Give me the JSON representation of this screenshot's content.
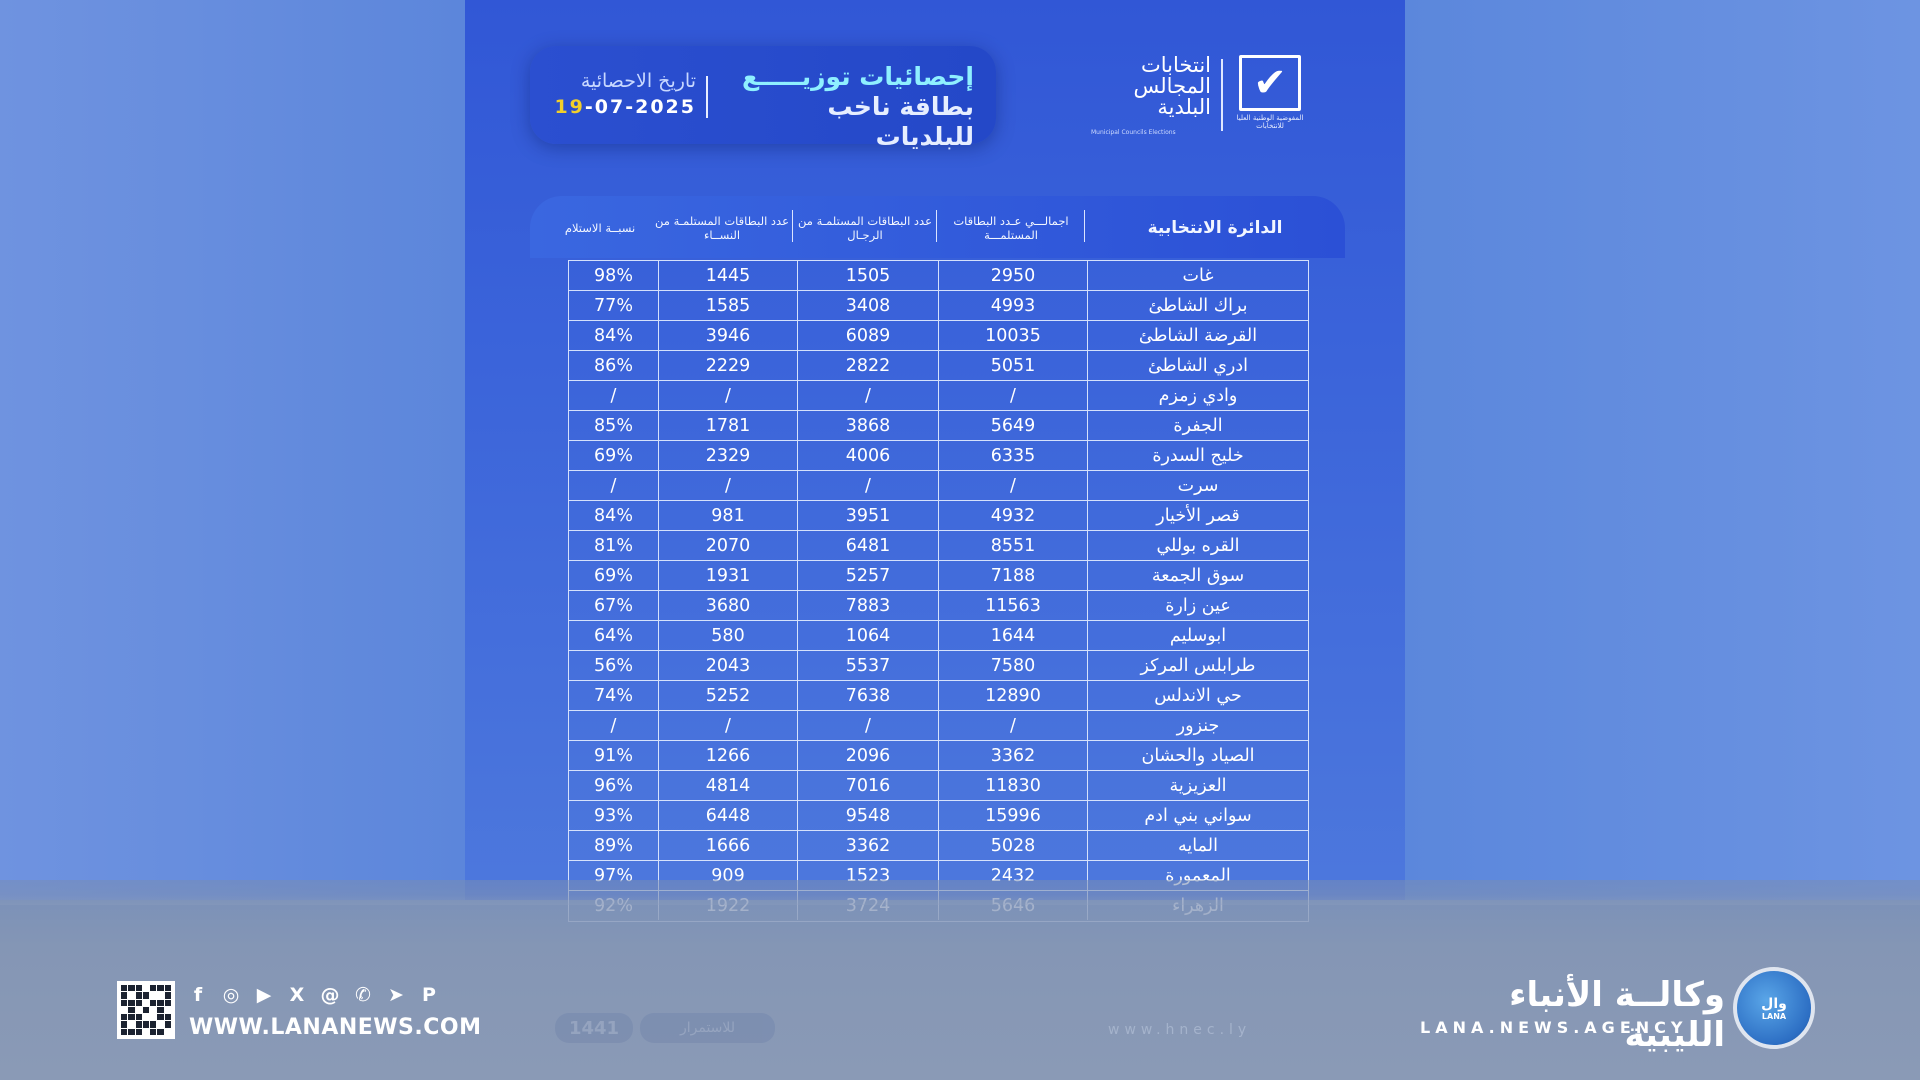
{
  "poster": {
    "title_line1": "إحصائيات توزيـــــع",
    "title_line2": "بطاقة ناخب للبلديات",
    "date_label": "تاريخ الاحصائية",
    "date_prefix": "19",
    "date_rest": "-07-2025",
    "logo_elections_text": "انتخابات المجالس البلدية",
    "logo_elections_sub": "Municipal Councils Elections",
    "logo_commission_caption": "المفوضية الوطنية العليا للانتخابات"
  },
  "table": {
    "headers": {
      "district": "الدائرة الانتخابية",
      "total": "اجمالـــي عـدد البطاقات المستلمـــة",
      "men": "عدد البطاقات المستلمـة من الرجـال",
      "women": "عدد البطاقات المستلمـة من النســاء",
      "pct": "نسبــة الاستلام"
    },
    "rows": [
      {
        "name": "غات",
        "total": "2950",
        "men": "1505",
        "women": "1445",
        "pct": "98%"
      },
      {
        "name": "براك الشاطئ",
        "total": "4993",
        "men": "3408",
        "women": "1585",
        "pct": "77%"
      },
      {
        "name": "القرضة الشاطئ",
        "total": "10035",
        "men": "6089",
        "women": "3946",
        "pct": "84%"
      },
      {
        "name": "ادري الشاطئ",
        "total": "5051",
        "men": "2822",
        "women": "2229",
        "pct": "86%"
      },
      {
        "name": "وادي زمزم",
        "total": "/",
        "men": "/",
        "women": "/",
        "pct": "/"
      },
      {
        "name": "الجفرة",
        "total": "5649",
        "men": "3868",
        "women": "1781",
        "pct": "85%"
      },
      {
        "name": "خليج السدرة",
        "total": "6335",
        "men": "4006",
        "women": "2329",
        "pct": "69%"
      },
      {
        "name": "سرت",
        "total": "/",
        "men": "/",
        "women": "/",
        "pct": "/"
      },
      {
        "name": "قصر الأخيار",
        "total": "4932",
        "men": "3951",
        "women": "981",
        "pct": "84%"
      },
      {
        "name": "القره بوللي",
        "total": "8551",
        "men": "6481",
        "women": "2070",
        "pct": "81%"
      },
      {
        "name": "سوق الجمعة",
        "total": "7188",
        "men": "5257",
        "women": "1931",
        "pct": "69%"
      },
      {
        "name": "عين زارة",
        "total": "11563",
        "men": "7883",
        "women": "3680",
        "pct": "67%"
      },
      {
        "name": "ابوسليم",
        "total": "1644",
        "men": "1064",
        "women": "580",
        "pct": "64%"
      },
      {
        "name": "طرابلس المركز",
        "total": "7580",
        "men": "5537",
        "women": "2043",
        "pct": "56%"
      },
      {
        "name": "حي الاندلس",
        "total": "12890",
        "men": "7638",
        "women": "5252",
        "pct": "74%"
      },
      {
        "name": "جنزور",
        "total": "/",
        "men": "/",
        "women": "/",
        "pct": "/"
      },
      {
        "name": "الصياد والحشان",
        "total": "3362",
        "men": "2096",
        "women": "1266",
        "pct": "91%"
      },
      {
        "name": "العزيزية",
        "total": "11830",
        "men": "7016",
        "women": "4814",
        "pct": "96%"
      },
      {
        "name": "سواني بني ادم",
        "total": "15996",
        "men": "9548",
        "women": "6448",
        "pct": "93%"
      },
      {
        "name": "المايه",
        "total": "5028",
        "men": "3362",
        "women": "1666",
        "pct": "89%"
      },
      {
        "name": "المعمورة",
        "total": "2432",
        "men": "1523",
        "women": "909",
        "pct": "97%"
      },
      {
        "name": "الزهراء",
        "total": "5646",
        "men": "3724",
        "women": "1922",
        "pct": "92%"
      }
    ]
  },
  "poster_footer": {
    "page_number": "1441",
    "next_label": "للاستمرار",
    "site": "www.hnec.ly"
  },
  "footer": {
    "website": "WWW.LANANEWS.COM",
    "agency_ar": "وكالــة الأنباء الليبية",
    "agency_en": "LANA.NEWS.AGENCY",
    "globe_ar": "وال",
    "globe_en": "LANA",
    "social_icons": [
      "facebook-icon",
      "instagram-icon",
      "youtube-icon",
      "x-icon",
      "threads-icon",
      "whatsapp-icon",
      "telegram-icon",
      "pinterest-icon"
    ]
  }
}
